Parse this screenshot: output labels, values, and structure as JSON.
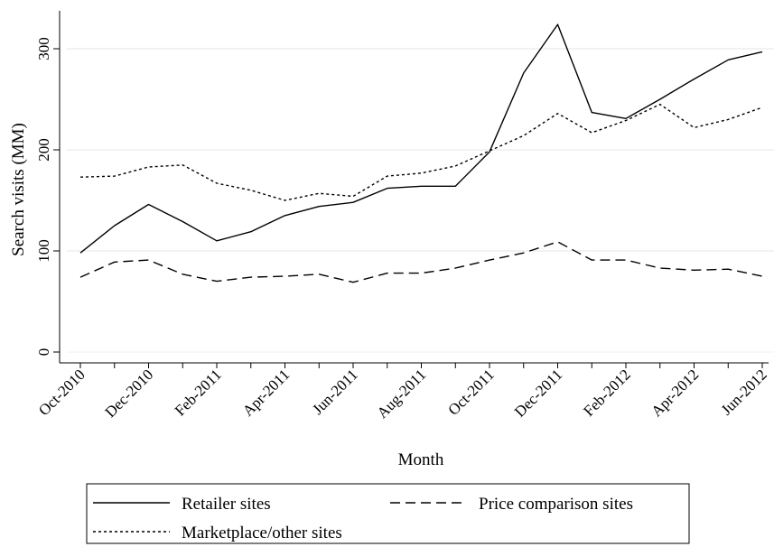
{
  "chart_data": {
    "type": "line",
    "title": "",
    "xlabel": "Month",
    "ylabel": "Search visits (MM)",
    "ylim": [
      0,
      340
    ],
    "yticks": [
      0,
      100,
      200,
      300
    ],
    "x": [
      "Oct-2010",
      "Nov-2010",
      "Dec-2010",
      "Jan-2011",
      "Feb-2011",
      "Mar-2011",
      "Apr-2011",
      "May-2011",
      "Jun-2011",
      "Jul-2011",
      "Aug-2011",
      "Sep-2011",
      "Oct-2011",
      "Nov-2011",
      "Dec-2011",
      "Jan-2012",
      "Feb-2012",
      "Mar-2012",
      "Apr-2012",
      "May-2012",
      "Jun-2012"
    ],
    "xtick_labels": [
      "Oct-2010",
      "Dec-2010",
      "Feb-2011",
      "Apr-2011",
      "Jun-2011",
      "Aug-2011",
      "Oct-2011",
      "Dec-2011",
      "Feb-2012",
      "Apr-2012",
      "Jun-2012"
    ],
    "grid": true,
    "legend_position": "bottom",
    "series": [
      {
        "name": "Retailer sites",
        "style": "solid",
        "values": [
          98,
          125,
          146,
          129,
          110,
          119,
          135,
          144,
          148,
          162,
          164,
          164,
          198,
          276,
          324,
          237,
          231,
          250,
          270,
          289,
          297
        ]
      },
      {
        "name": "Price comparison sites",
        "style": "dashed",
        "values": [
          74,
          89,
          91,
          77,
          70,
          74,
          75,
          77,
          69,
          78,
          78,
          83,
          91,
          98,
          109,
          91,
          91,
          83,
          81,
          82,
          75
        ]
      },
      {
        "name": "Marketplace/other sites",
        "style": "dotted",
        "values": [
          173,
          174,
          183,
          185,
          167,
          160,
          150,
          157,
          154,
          174,
          177,
          184,
          199,
          214,
          236,
          217,
          229,
          245,
          222,
          230,
          242
        ]
      }
    ]
  }
}
